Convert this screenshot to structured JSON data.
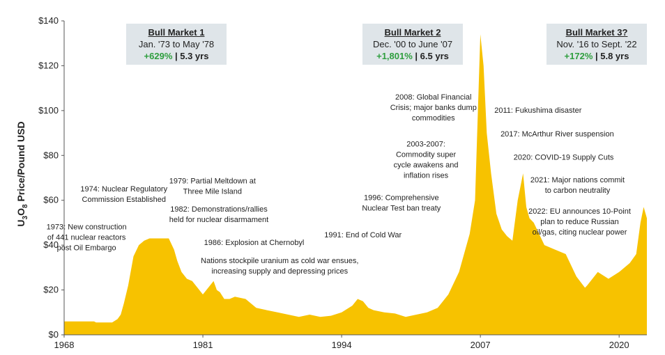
{
  "chart_data": {
    "type": "area",
    "title": "",
    "ylabel": {
      "pre": "U",
      "sub1": "3",
      "mid": "O",
      "sub2": "8",
      "post": " Price/Pound USD"
    },
    "xlabel": "",
    "xlim": [
      1968,
      2022.6
    ],
    "ylim": [
      0,
      140
    ],
    "x_ticks": [
      "1968",
      "1981",
      "1994",
      "2007",
      "2020"
    ],
    "x_tick_values": [
      1968,
      1981,
      1994,
      2007,
      2020
    ],
    "y_ticks": [
      "$0",
      "$20",
      "$40",
      "$60",
      "$80",
      "$100",
      "$120",
      "$140"
    ],
    "y_tick_values": [
      0,
      20,
      40,
      60,
      80,
      100,
      120,
      140
    ],
    "fill_color": "#f7c200",
    "series": [
      {
        "x": [
          1968,
          1970.8,
          1971,
          1972.5,
          1973,
          1973.3,
          1973.6,
          1974,
          1974.5,
          1975,
          1975.5,
          1976,
          1977,
          1977.8,
          1978.3,
          1978.6,
          1979,
          1979.5,
          1980,
          1980.5,
          1981,
          1981.5,
          1982,
          1982.3,
          1982.6,
          1983,
          1983.5,
          1984,
          1985,
          1986,
          1987,
          1988,
          1989,
          1990,
          1991,
          1992,
          1993,
          1994,
          1995,
          1995.5,
          1996,
          1996.5,
          1997,
          1998,
          1999,
          2000,
          2001,
          2002,
          2003,
          2004,
          2005,
          2006,
          2006.5,
          2007,
          2007.3,
          2007.6,
          2008,
          2008.5,
          2009,
          2009.5,
          2010,
          2010.5,
          2011,
          2011.3,
          2011.6,
          2012,
          2013,
          2014,
          2015,
          2016,
          2016.8,
          2017,
          2018,
          2019,
          2020,
          2020.5,
          2021,
          2021.6,
          2022,
          2022.3,
          2022.6
        ],
        "y": [
          6,
          6,
          5.5,
          5.5,
          7,
          9,
          14,
          22,
          35,
          40,
          42,
          43,
          43,
          43,
          38,
          33,
          28,
          25,
          24,
          21,
          18,
          21,
          24,
          20,
          19,
          16,
          16,
          17,
          16,
          12,
          11,
          10,
          9,
          8,
          9,
          8,
          8.5,
          10,
          13,
          16,
          15,
          12,
          11,
          10,
          9.5,
          8,
          9,
          10,
          12,
          18,
          28,
          45,
          60,
          134,
          120,
          90,
          72,
          54,
          47,
          44,
          42,
          60,
          72,
          57,
          52,
          50,
          40,
          38,
          36,
          26,
          21,
          22,
          28,
          25,
          28,
          30,
          32,
          36,
          50,
          57,
          52
        ]
      }
    ],
    "annotations": [
      {
        "lines": [
          "1974: Nuclear Regulatory",
          "Commission Established"
        ],
        "x": 1973.6,
        "y": 64
      },
      {
        "lines": [
          "1973: New construction",
          "of 441 nuclear reactors",
          "post Oil Embargo"
        ],
        "x": 1970.1,
        "y": 47
      },
      {
        "lines": [
          "1979: Partial Meltdown at",
          "Three Mile Island"
        ],
        "x": 1981.9,
        "y": 67.5
      },
      {
        "lines": [
          "1982: Demonstrations/rallies",
          "held for nuclear disarmament"
        ],
        "x": 1982.5,
        "y": 55
      },
      {
        "lines": [
          "1986: Explosion at Chernobyl"
        ],
        "x": 1985.8,
        "y": 40
      },
      {
        "lines": [
          "Nations stockpile uranium as cold war ensues,",
          "increasing supply and depressing prices"
        ],
        "x": 1988.2,
        "y": 32
      },
      {
        "lines": [
          "1991: End of Cold War"
        ],
        "x": 1996,
        "y": 43.5
      },
      {
        "lines": [
          "1996: Comprehensive",
          "Nuclear Test ban treaty"
        ],
        "x": 1999.6,
        "y": 60
      },
      {
        "lines": [
          "2003-2007:",
          "Commodity super",
          "cycle awakens and",
          "inflation rises"
        ],
        "x": 2001.9,
        "y": 84
      },
      {
        "lines": [
          "2008: Global Financial",
          "Crisis; major banks dump",
          "commodities"
        ],
        "x": 2002.6,
        "y": 105
      },
      {
        "lines": [
          "2011: Fukushima disaster"
        ],
        "x": 2012.4,
        "y": 99
      },
      {
        "lines": [
          "2017: McArthur River suspension"
        ],
        "x": 2014.2,
        "y": 88.5
      },
      {
        "lines": [
          "2020: COVID-19 Supply Cuts"
        ],
        "x": 2014.8,
        "y": 78
      },
      {
        "lines": [
          "2021: Major nations commit",
          "to carbon neutrality"
        ],
        "x": 2016.1,
        "y": 68
      },
      {
        "lines": [
          "2022: EU announces 10-Point",
          "plan to reduce Russian",
          "oil/gas, citing nuclear power"
        ],
        "x": 2016.3,
        "y": 54
      }
    ]
  },
  "bull_markets": [
    {
      "title": "Bull Market 1",
      "period": "Jan. '73 to May '78",
      "gain": "+629%",
      "sep": " | ",
      "duration": "5.3 yrs"
    },
    {
      "title": "Bull Market 2",
      "period": "Dec. '00 to June '07",
      "gain": "+1,801%",
      "sep": " | ",
      "duration": "6.5 yrs"
    },
    {
      "title": "Bull Market 3?",
      "period": "Nov. '16 to Sept. '22",
      "gain": "+172%",
      "sep": " | ",
      "duration": "5.8 yrs"
    }
  ]
}
